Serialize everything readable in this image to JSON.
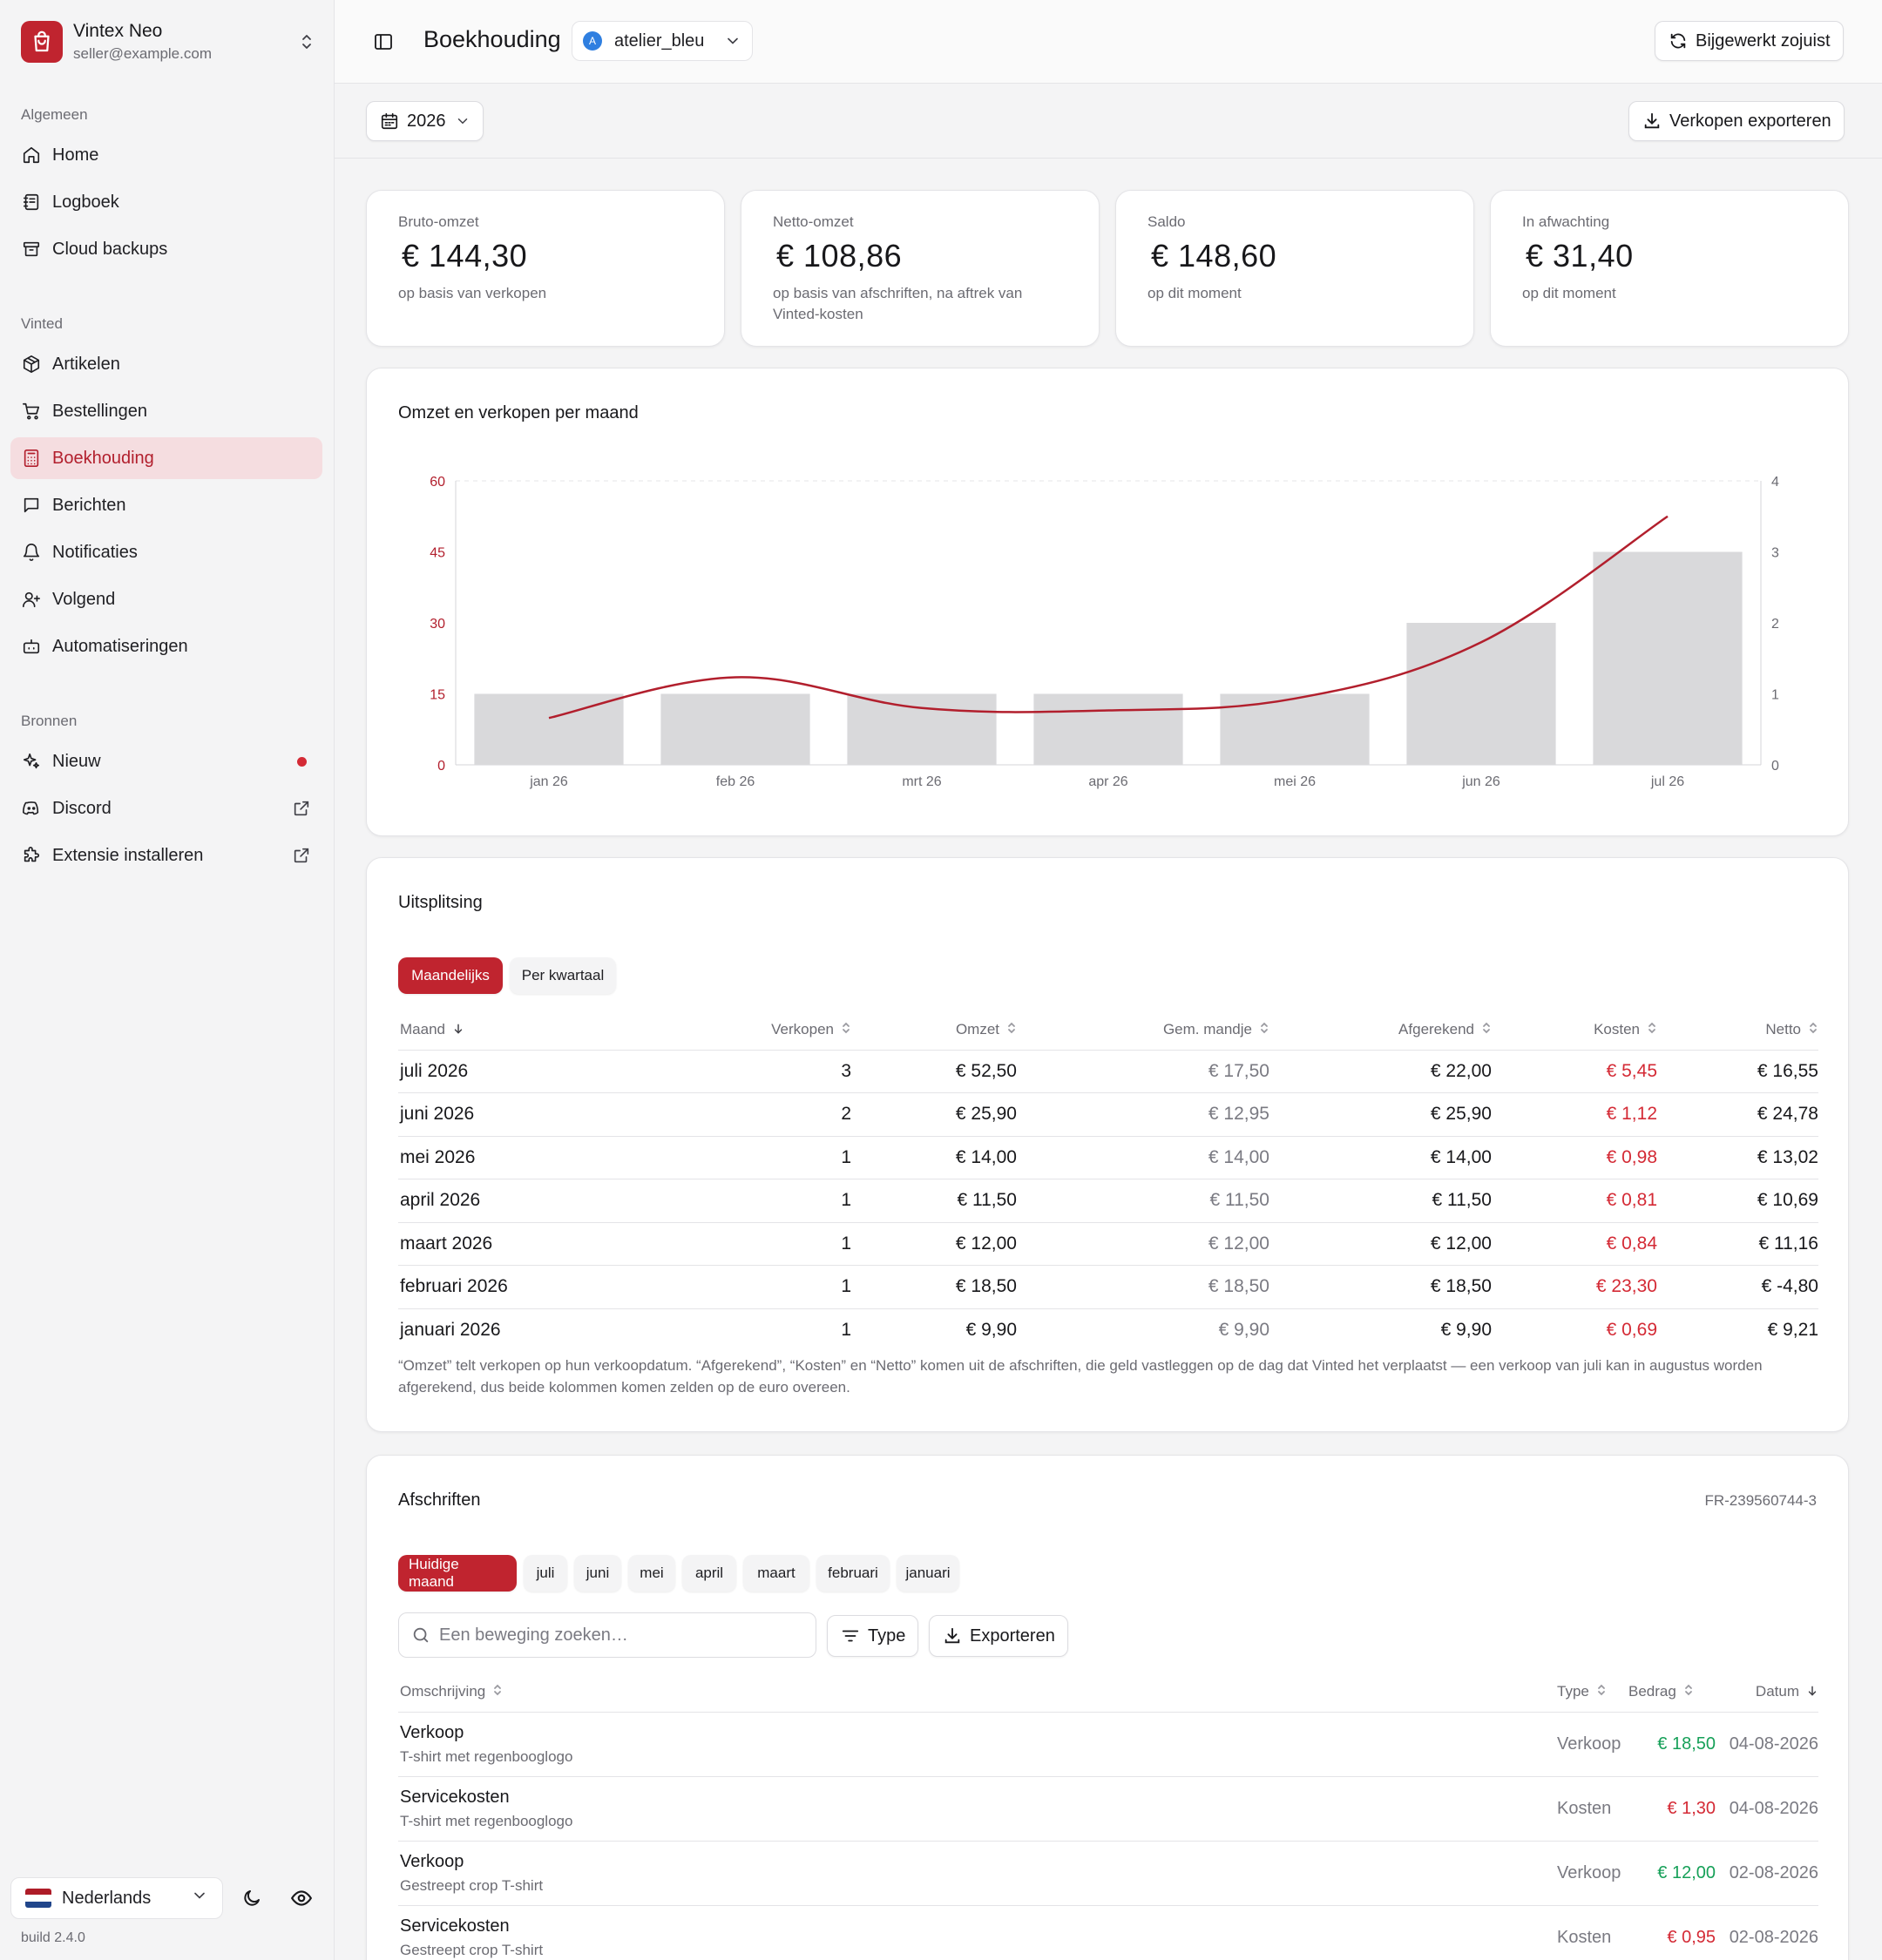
{
  "account": {
    "name": "Vintex Neo",
    "email": "seller@example.com"
  },
  "sidebar": {
    "sections": [
      "Algemeen",
      "Vinted",
      "Bronnen"
    ],
    "general": [
      {
        "label": "Home",
        "icon": "home-icon"
      },
      {
        "label": "Logboek",
        "icon": "logbook-icon"
      },
      {
        "label": "Cloud backups",
        "icon": "archive-icon"
      }
    ],
    "vinted": [
      {
        "label": "Artikelen",
        "icon": "package-icon"
      },
      {
        "label": "Bestellingen",
        "icon": "cart-icon"
      },
      {
        "label": "Boekhouding",
        "icon": "calculator-icon",
        "active": true
      },
      {
        "label": "Berichten",
        "icon": "message-icon"
      },
      {
        "label": "Notificaties",
        "icon": "bell-icon"
      },
      {
        "label": "Volgend",
        "icon": "user-plus-icon"
      },
      {
        "label": "Automatiseringen",
        "icon": "bot-icon"
      }
    ],
    "sources": [
      {
        "label": "Nieuw",
        "icon": "sparkles-icon"
      },
      {
        "label": "Discord",
        "icon": "discord-icon"
      },
      {
        "label": "Extensie installeren",
        "icon": "puzzle-icon"
      }
    ],
    "language": "Nederlands",
    "build": "build 2.4.0"
  },
  "header": {
    "title": "Boekhouding",
    "shop": "atelier_bleu",
    "shop_initial": "A",
    "refresh_label": "Bijgewerkt zojuist"
  },
  "toolbar": {
    "year": "2026",
    "export_label": "Verkopen exporteren"
  },
  "kpis": [
    {
      "label": "Bruto-omzet",
      "value": "€  144,30",
      "sub": "op basis van verkopen"
    },
    {
      "label": "Netto-omzet",
      "value": "€  108,86",
      "sub": "op basis van afschriften, na aftrek van Vinted-kosten"
    },
    {
      "label": "Saldo",
      "value": "€  148,60",
      "sub": "op dit moment"
    },
    {
      "label": "In afwachting",
      "value": "€  31,40",
      "sub": "op dit moment"
    }
  ],
  "chart_data": {
    "type": "bar",
    "title": "Omzet en verkopen per maand",
    "categories": [
      "jan 26",
      "feb 26",
      "mrt 26",
      "apr 26",
      "mei 26",
      "jun 26",
      "jul 26"
    ],
    "series": [
      {
        "axis": "left",
        "type": "line",
        "values": [
          9.9,
          18.5,
          12.0,
          11.5,
          14.0,
          25.9,
          52.5
        ],
        "color": "#b21f2d"
      },
      {
        "axis": "right",
        "type": "bar",
        "values": [
          1,
          1,
          1,
          1,
          1,
          2,
          3
        ],
        "color": "#d9d9db"
      }
    ],
    "y_left": {
      "ticks": [
        "0",
        "15",
        "30",
        "45",
        "60"
      ],
      "lim": [
        0,
        60
      ]
    },
    "y_right": {
      "ticks": [
        "0",
        "1",
        "2",
        "3",
        "4"
      ],
      "lim": [
        0,
        4
      ]
    },
    "grid": "top dashed line only"
  },
  "breakdown": {
    "title": "Uitsplitsing",
    "tabs": [
      "Maandelijks",
      "Per kwartaal"
    ],
    "columns": [
      "Maand",
      "Verkopen",
      "Omzet",
      "Gem. mandje",
      "Afgerekend",
      "Kosten",
      "Netto"
    ],
    "rows": [
      [
        "juli 2026",
        "3",
        "€  52,50",
        "€  17,50",
        "€  22,00",
        "€  5,45",
        "€  16,55"
      ],
      [
        "juni 2026",
        "2",
        "€  25,90",
        "€  12,95",
        "€  25,90",
        "€  1,12",
        "€  24,78"
      ],
      [
        "mei 2026",
        "1",
        "€  14,00",
        "€  14,00",
        "€  14,00",
        "€  0,98",
        "€  13,02"
      ],
      [
        "april 2026",
        "1",
        "€  11,50",
        "€  11,50",
        "€  11,50",
        "€  0,81",
        "€  10,69"
      ],
      [
        "maart 2026",
        "1",
        "€  12,00",
        "€  12,00",
        "€  12,00",
        "€  0,84",
        "€  11,16"
      ],
      [
        "februari 2026",
        "1",
        "€  18,50",
        "€  18,50",
        "€  18,50",
        "€  23,30",
        "€  -4,80"
      ],
      [
        "januari 2026",
        "1",
        "€  9,90",
        "€  9,90",
        "€  9,90",
        "€  0,69",
        "€  9,21"
      ]
    ],
    "note": "“Omzet” telt verkopen op hun verkoopdatum. “Afgerekend”, “Kosten” en “Netto” komen uit de afschriften, die geld vastleggen op de dag dat Vinted het verplaatst — een verkoop van juli kan in augustus worden afgerekend, dus beide kolommen komen zelden op de euro overeen."
  },
  "statements": {
    "title": "Afschriften",
    "reference": "FR-239560744-3",
    "tabs": [
      "Huidige maand",
      "juli",
      "juni",
      "mei",
      "april",
      "maart",
      "februari",
      "januari"
    ],
    "search_placeholder": "Een beweging zoeken…",
    "type_filter": "Type",
    "export_label": "Exporteren",
    "columns": [
      "Omschrijving",
      "Type",
      "Bedrag",
      "Datum"
    ],
    "rows": [
      {
        "desc": "Verkoop",
        "item": "T-shirt met regenbooglogo",
        "type": "Verkoop",
        "amount": "€  18,50",
        "date": "04-08-2026",
        "kind": "in"
      },
      {
        "desc": "Servicekosten",
        "item": "T-shirt met regenbooglogo",
        "type": "Kosten",
        "amount": "€  1,30",
        "date": "04-08-2026",
        "kind": "out"
      },
      {
        "desc": "Verkoop",
        "item": "Gestreept crop T-shirt",
        "type": "Verkoop",
        "amount": "€  12,00",
        "date": "02-08-2026",
        "kind": "in"
      },
      {
        "desc": "Servicekosten",
        "item": "Gestreept crop T-shirt",
        "type": "Kosten",
        "amount": "€  0,95",
        "date": "02-08-2026",
        "kind": "out"
      }
    ]
  }
}
